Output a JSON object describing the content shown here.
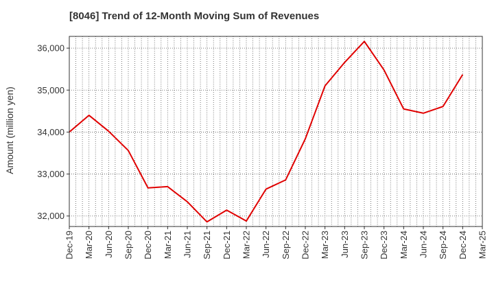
{
  "chart_data": {
    "type": "line",
    "title": "[8046]  Trend of 12-Month Moving Sum of Revenues",
    "xlabel": "",
    "ylabel": "Amount (million yen)",
    "x_tick_labels": [
      "Dec-19",
      "Mar-20",
      "Jun-20",
      "Sep-20",
      "Dec-20",
      "Mar-21",
      "Jun-21",
      "Sep-21",
      "Dec-21",
      "Mar-22",
      "Jun-22",
      "Sep-22",
      "Dec-22",
      "Mar-23",
      "Jun-23",
      "Sep-23",
      "Dec-23",
      "Mar-24",
      "Jun-24",
      "Sep-24",
      "Dec-24",
      "Mar-25"
    ],
    "y_ticks": [
      32000,
      33000,
      34000,
      35000,
      36000
    ],
    "y_tick_labels": [
      "32,000",
      "33,000",
      "34,000",
      "35,000",
      "36,000"
    ],
    "ylim": [
      31750,
      36280
    ],
    "grid": true,
    "series": [
      {
        "color": "#e00000",
        "x": [
          "Dec-19",
          "Mar-20",
          "Jun-20",
          "Sep-20",
          "Dec-20",
          "Mar-21",
          "Jun-21",
          "Sep-21",
          "Dec-21",
          "Mar-22",
          "Jun-22",
          "Sep-22",
          "Dec-22",
          "Mar-23",
          "Jun-23",
          "Sep-23",
          "Dec-23",
          "Mar-24",
          "Jun-24",
          "Sep-24",
          "Dec-24"
        ],
        "values": [
          34000,
          34400,
          34020,
          33560,
          32670,
          32700,
          32340,
          31860,
          32140,
          31880,
          32640,
          32860,
          33840,
          35100,
          35660,
          36160,
          35480,
          34550,
          34450,
          34610,
          35370
        ]
      }
    ]
  }
}
